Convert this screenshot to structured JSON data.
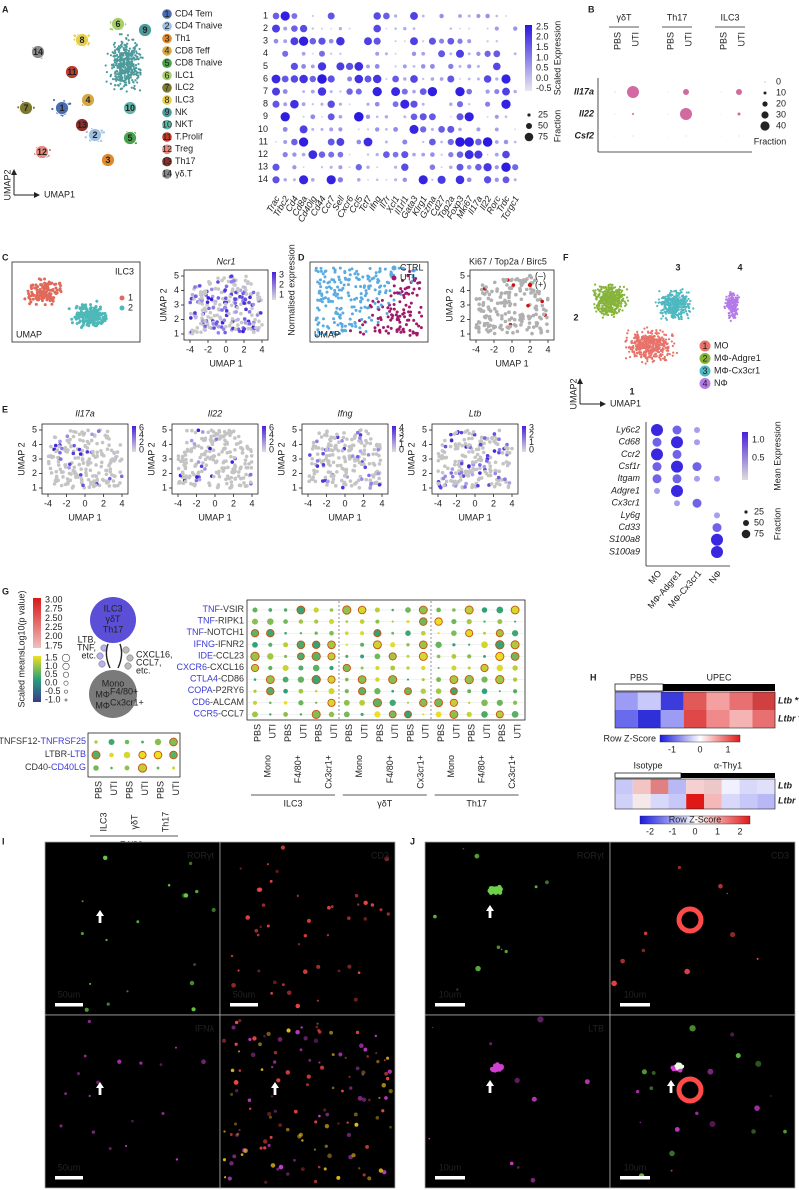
{
  "a": {
    "letter": "A",
    "x_axis": "UMAP1",
    "y_axis": "UMAP2",
    "clusters": [
      {
        "num": "1",
        "name": "CD4 Tem",
        "color": "#4a6bb0"
      },
      {
        "num": "2",
        "name": "CD4 Tnaive",
        "color": "#9fc0e2"
      },
      {
        "num": "3",
        "name": "Th1",
        "color": "#e0892c"
      },
      {
        "num": "4",
        "name": "CD8 Teff",
        "color": "#d6a845"
      },
      {
        "num": "5",
        "name": "CD8 Tnaive",
        "color": "#48a04a"
      },
      {
        "num": "6",
        "name": "ILC1",
        "color": "#a6cf6b"
      },
      {
        "num": "7",
        "name": "ILC2",
        "color": "#7d7a2e"
      },
      {
        "num": "8",
        "name": "ILC3",
        "color": "#e5cf4a"
      },
      {
        "num": "9",
        "name": "NK",
        "color": "#4d9a9c"
      },
      {
        "num": "10",
        "name": "NKT",
        "color": "#5fb5a8"
      },
      {
        "num": "11",
        "name": "T.Prolif",
        "color": "#c0392b"
      },
      {
        "num": "12",
        "name": "Treg",
        "color": "#e8897f"
      },
      {
        "num": "13",
        "name": "Th17",
        "color": "#8e2f2a"
      },
      {
        "num": "14",
        "name": "γδ.T",
        "color": "#8a8a8a"
      }
    ],
    "rows": [
      "1",
      "2",
      "3",
      "4",
      "5",
      "6",
      "7",
      "8",
      "9",
      "10",
      "11",
      "12",
      "13",
      "14"
    ],
    "genes": [
      "Trac",
      "Trbc2",
      "Cd4",
      "Cd8a",
      "Cd40lg",
      "Cd44",
      "Ccr7",
      "Sell",
      "Cxcr6",
      "Ccl5",
      "Tcf7",
      "Ifng",
      "Il7r",
      "Xcl1",
      "Il1rl1",
      "Gata3",
      "Klrg1",
      "Gzma",
      "Cd27",
      "Top2a",
      "Foxp3",
      "Mki67",
      "Il17a",
      "Il22",
      "Rorc",
      "Trdc",
      "Tcrgc1"
    ],
    "color_title": "Scaled Expression",
    "color_ticks": [
      "2.5",
      "2.0",
      "1.5",
      "1.0",
      "0.5",
      "0.0",
      "-0.5"
    ],
    "size_title": "Fraction",
    "size_ticks": [
      "25",
      "50",
      "75"
    ]
  },
  "b": {
    "letter": "B",
    "groups": [
      "γδT",
      "Th17",
      "ILC3"
    ],
    "conditions": [
      {
        "text": "PBS",
        "color": "#b0b0b0"
      },
      {
        "text": "UTI",
        "color": "#e0288a"
      }
    ],
    "genes": [
      "Il17a",
      "Il22",
      "Csf2"
    ],
    "size_ticks": [
      "0",
      "10",
      "20",
      "30",
      "40"
    ],
    "size_title": "Fraction"
  },
  "c": {
    "letter": "C",
    "title": "ILC3",
    "groups": [
      {
        "text": "1",
        "color": "#e06a5a"
      },
      {
        "text": "2",
        "color": "#4fb8b8"
      }
    ],
    "umap": "UMAP",
    "gene": "Ncr1",
    "scale_title": "Normalised expression",
    "scale_ticks": [
      "3",
      "2",
      "1"
    ],
    "x_axis": "UMAP 1",
    "y_axis": "UMAP 2",
    "xticks": [
      "-4",
      "-2",
      "0",
      "2",
      "4"
    ],
    "yticks": [
      "5",
      "4",
      "3",
      "2",
      "1"
    ]
  },
  "d": {
    "letter": "D",
    "groups": [
      {
        "text": "CTRL",
        "color": "#5aabe0"
      },
      {
        "text": "UTI",
        "color": "#a01a6a"
      }
    ],
    "umap": "UMAP",
    "title": "Ki67 / Top2a / Birc5",
    "states": [
      {
        "text": "(–)",
        "color": "#b0b0b0"
      },
      {
        "text": "(+)",
        "color": "#d01010"
      }
    ],
    "x_axis": "UMAP 1",
    "y_axis": "UMAP 2",
    "xticks": [
      "-4",
      "-2",
      "0",
      "2",
      "4"
    ],
    "yticks": [
      "5",
      "4",
      "3",
      "2",
      "1"
    ]
  },
  "e": {
    "letter": "E",
    "plots": [
      {
        "gene": "Il17a",
        "scale_ticks": [
          "6",
          "4",
          "2",
          "0"
        ]
      },
      {
        "gene": "Il22",
        "scale_ticks": [
          "6",
          "4",
          "2",
          "0"
        ]
      },
      {
        "gene": "Ifng",
        "scale_ticks": [
          "4",
          "3",
          "2",
          "1",
          "0"
        ]
      },
      {
        "gene": "Ltb",
        "scale_ticks": [
          "3",
          "2",
          "1",
          "0"
        ]
      }
    ],
    "x_axis": "UMAP 1",
    "y_axis": "UMAP 2",
    "xticks": [
      "-4",
      "-2",
      "0",
      "2",
      "4"
    ],
    "yticks": [
      "5",
      "4",
      "3",
      "2",
      "1"
    ]
  },
  "f": {
    "letter": "F",
    "clusters": [
      {
        "num": "1",
        "name": "MO",
        "color": "#e8736a"
      },
      {
        "num": "2",
        "name": "MΦ-Adgre1",
        "color": "#86b43a"
      },
      {
        "num": "3",
        "name": "MΦ-Cx3cr1",
        "color": "#4fb8c0"
      },
      {
        "num": "4",
        "name": "NΦ",
        "color": "#b57ae8"
      }
    ],
    "x_axis": "UMAP1",
    "y_axis": "UMAP2",
    "genes": [
      "Ly6c2",
      "Cd68",
      "Ccr2",
      "Csf1r",
      "Itgam",
      "Adgre1",
      "Cx3cr1",
      "Ly6g",
      "Cd33",
      "S100a8",
      "S100a9"
    ],
    "color_title": "Mean Expression",
    "color_ticks": [
      "1.0",
      "0.5"
    ],
    "size_title": "Fraction",
    "size_ticks": [
      "25",
      "50",
      "75"
    ]
  },
  "g": {
    "letter": "G",
    "pvalue_title": "-Log10(p value)",
    "pvalue_ticks": [
      "3.00",
      "2.75",
      "2.50",
      "2.25",
      "2.00",
      "1.75"
    ],
    "means_title": "Scaled means",
    "means_ticks": [
      "1.5",
      "1.0",
      "0.5",
      "0.0",
      "-0.5",
      "-1.0"
    ],
    "source": [
      "ILC3",
      "γδT",
      "Th17"
    ],
    "source_signals": [
      "LTB,",
      "TNF,",
      "etc."
    ],
    "target": [
      {
        "text": "Mono"
      },
      {
        "text": "MΦ",
        "sup": "F4/80+"
      },
      {
        "text": "MΦ",
        "sup": "Cx3cr1+"
      }
    ],
    "target_signals": [
      "CXCL16,",
      "CCL7,",
      "etc."
    ],
    "left_pairs": [
      [
        {
          "text": "TNFSF12-",
          "color": "#333333"
        },
        {
          "text": "TNFRSF25",
          "color": "#3a3ad6"
        }
      ],
      [
        {
          "text": "LTBR-",
          "color": "#333333"
        },
        {
          "text": "LTB",
          "color": "#3a3ad6"
        }
      ],
      [
        {
          "text": "CD40-",
          "color": "#333333"
        },
        {
          "text": "CD40LG",
          "color": "#3a3ad6"
        }
      ]
    ],
    "left_groups": [
      "ILC3",
      "γδT",
      "Th17"
    ],
    "left_target": "F4/80+",
    "conditions": [
      {
        "text": "PBS",
        "color": "#b0b0b0"
      },
      {
        "text": "UTI",
        "color": "#e05050"
      }
    ],
    "right_pairs": [
      [
        {
          "text": "TNF",
          "color": "#3a3ad6"
        },
        {
          "text": "-VSIR",
          "color": "#333333"
        }
      ],
      [
        {
          "text": "TNF",
          "color": "#3a3ad6"
        },
        {
          "text": "-RIPK1",
          "color": "#333333"
        }
      ],
      [
        {
          "text": "TNF",
          "color": "#3a3ad6"
        },
        {
          "text": "-NOTCH1",
          "color": "#333333"
        }
      ],
      [
        {
          "text": "IFNG",
          "color": "#3a3ad6"
        },
        {
          "text": "-IFNR2",
          "color": "#333333"
        }
      ],
      [
        {
          "text": "IDE",
          "color": "#3a3ad6"
        },
        {
          "text": "-CCL23",
          "color": "#333333"
        }
      ],
      [
        {
          "text": "CXCR6",
          "color": "#3a3ad6"
        },
        {
          "text": "-CXCL16",
          "color": "#333333"
        }
      ],
      [
        {
          "text": "CTLA4",
          "color": "#3a3ad6"
        },
        {
          "text": "-CD86",
          "color": "#333333"
        }
      ],
      [
        {
          "text": "COPA",
          "color": "#3a3ad6"
        },
        {
          "text": "-P2RY6",
          "color": "#333333"
        }
      ],
      [
        {
          "text": "CD6",
          "color": "#3a3ad6"
        },
        {
          "text": "-ALCAM",
          "color": "#333333"
        }
      ],
      [
        {
          "text": "CCR5",
          "color": "#3a3ad6"
        },
        {
          "text": "-CCL7",
          "color": "#333333"
        }
      ]
    ],
    "right_targets": [
      "Mono",
      "F4/80+",
      "Cx3cr1+"
    ],
    "right_groups": [
      "ILC3",
      "γδT",
      "Th17"
    ]
  },
  "h": {
    "letter": "H",
    "top": {
      "groups": [
        "PBS",
        "UPEC"
      ],
      "genes": [
        "Ltb **",
        "Ltbr **"
      ],
      "scale_title": "Row Z-Score",
      "scale_ticks": [
        "-1",
        "0",
        "1"
      ]
    },
    "bottom": {
      "groups": [
        "Isotype",
        "α-Thy1"
      ],
      "genes": [
        "Ltb",
        "Ltbr"
      ],
      "scale_title": "Row Z-Score",
      "scale_ticks": [
        "-2",
        "-1",
        "0",
        "1",
        "2"
      ]
    }
  },
  "i": {
    "letter": "I",
    "channels": [
      {
        "text": "RORγt",
        "color": "#6fd04a"
      },
      {
        "text": "CD3",
        "color": "#ff4a4a"
      },
      {
        "text": "IFNλ",
        "color": "#d040d0"
      }
    ],
    "scale_bars": [
      "50um",
      "50um",
      "50um"
    ]
  },
  "j": {
    "letter": "J",
    "channels": [
      {
        "text": "RORγt",
        "color": "#6fd04a"
      },
      {
        "text": "CD3",
        "color": "#ff4a4a"
      },
      {
        "text": "LTB",
        "color": "#d040d0"
      }
    ],
    "scale_bars": [
      "10um",
      "10um",
      "10um",
      "10um"
    ]
  }
}
